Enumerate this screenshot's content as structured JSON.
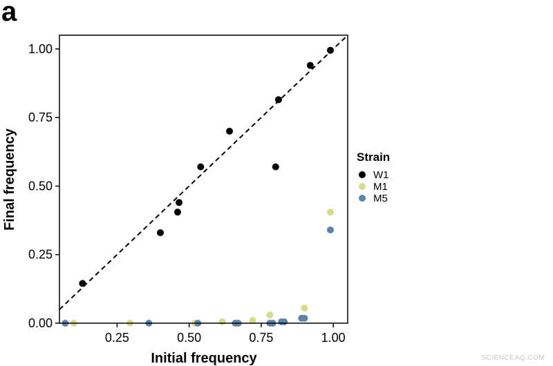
{
  "panel_label": "a",
  "watermark": "SCIENCEAQ.COM",
  "colors": {
    "W1": "#000000",
    "M1": "#d8db8c",
    "M5": "#5b84a8"
  },
  "chart_data": {
    "type": "scatter",
    "title": "",
    "xlabel": "Initial frequency",
    "ylabel": "Final frequency",
    "xlim": [
      0.05,
      1.05
    ],
    "ylim": [
      0,
      1.05
    ],
    "xticks": [
      0.25,
      0.5,
      0.75,
      1.0
    ],
    "yticks": [
      0.0,
      0.25,
      0.5,
      0.75,
      1.0
    ],
    "xtick_labels": [
      "0.25",
      "0.50",
      "0.75",
      "1.00"
    ],
    "ytick_labels": [
      "0.00",
      "0.25",
      "0.50",
      "0.75",
      "1.00"
    ],
    "reference_line": "y = x (dashed)",
    "grid": false,
    "legend": {
      "title": "Strain",
      "position": "right"
    },
    "series": [
      {
        "name": "W1",
        "color": "#000000",
        "points": [
          [
            0.13,
            0.145
          ],
          [
            0.4,
            0.33
          ],
          [
            0.46,
            0.405
          ],
          [
            0.465,
            0.44
          ],
          [
            0.54,
            0.57
          ],
          [
            0.64,
            0.7
          ],
          [
            0.8,
            0.57
          ],
          [
            0.81,
            0.815
          ],
          [
            0.92,
            0.94
          ],
          [
            0.99,
            0.995
          ]
        ]
      },
      {
        "name": "M1",
        "color": "#d8db8c",
        "points": [
          [
            0.1,
            0.0
          ],
          [
            0.295,
            0.0
          ],
          [
            0.52,
            0.0
          ],
          [
            0.615,
            0.005
          ],
          [
            0.72,
            0.01
          ],
          [
            0.78,
            0.03
          ],
          [
            0.9,
            0.055
          ],
          [
            0.99,
            0.405
          ]
        ]
      },
      {
        "name": "M5",
        "color": "#5b84a8",
        "points": [
          [
            0.07,
            0.0
          ],
          [
            0.36,
            0.0
          ],
          [
            0.53,
            0.0
          ],
          [
            0.66,
            0.0
          ],
          [
            0.67,
            0.0
          ],
          [
            0.78,
            0.0
          ],
          [
            0.79,
            0.0
          ],
          [
            0.82,
            0.005
          ],
          [
            0.83,
            0.005
          ],
          [
            0.89,
            0.018
          ],
          [
            0.9,
            0.018
          ],
          [
            0.99,
            0.34
          ]
        ]
      }
    ]
  }
}
